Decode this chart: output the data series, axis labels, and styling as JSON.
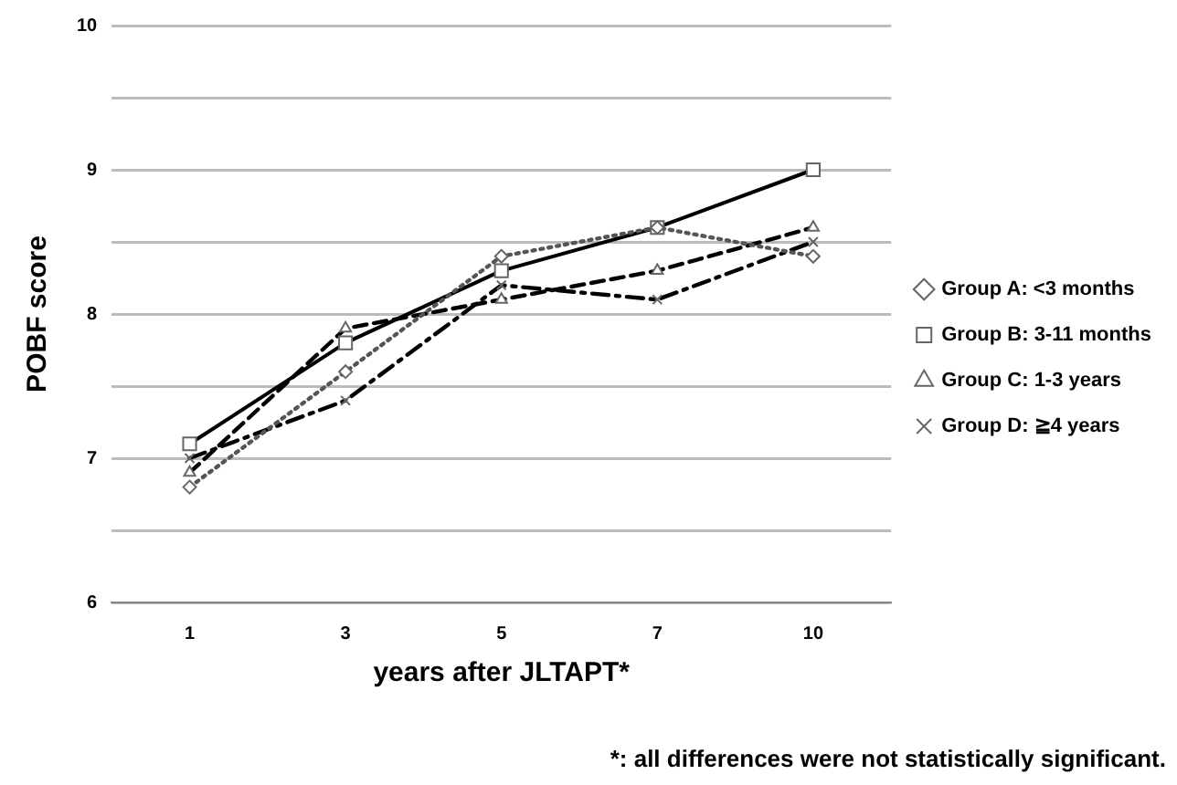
{
  "chart_data": {
    "type": "line",
    "xlabel": "years after JLTAPT*",
    "ylabel": "POBF score",
    "categories": [
      "1",
      "3",
      "5",
      "7",
      "10"
    ],
    "series": [
      {
        "name": "Group A: <3 months",
        "color": "#555555",
        "values": [
          6.8,
          7.6,
          8.4,
          8.6,
          8.4
        ],
        "line_style": "dotted",
        "marker": "diamond"
      },
      {
        "name": "Group B: 3-11 months",
        "color": "#000000",
        "values": [
          7.1,
          7.8,
          8.3,
          8.6,
          9.0
        ],
        "line_style": "solid",
        "marker": "square"
      },
      {
        "name": "Group C: 1-3 years",
        "color": "#000000",
        "values": [
          6.9,
          7.9,
          8.1,
          8.3,
          8.6
        ],
        "line_style": "dashed",
        "marker": "triangle"
      },
      {
        "name": "Group D: ≧4 years",
        "color": "#000000",
        "values": [
          7.0,
          7.4,
          8.2,
          8.1,
          8.5
        ],
        "line_style": "dashdot",
        "marker": "cross"
      }
    ],
    "ylim": [
      6,
      10
    ],
    "yticks": [
      6,
      {
        "value": 6.5,
        "label": null
      },
      7,
      {
        "value": 7.5,
        "label": null
      },
      8,
      {
        "value": 8.5,
        "label": null
      },
      9,
      {
        "value": 9.5,
        "label": null
      },
      10
    ],
    "grid": "y",
    "legend": "right",
    "annotations": [
      "*: all differences were not statistically significant."
    ]
  }
}
